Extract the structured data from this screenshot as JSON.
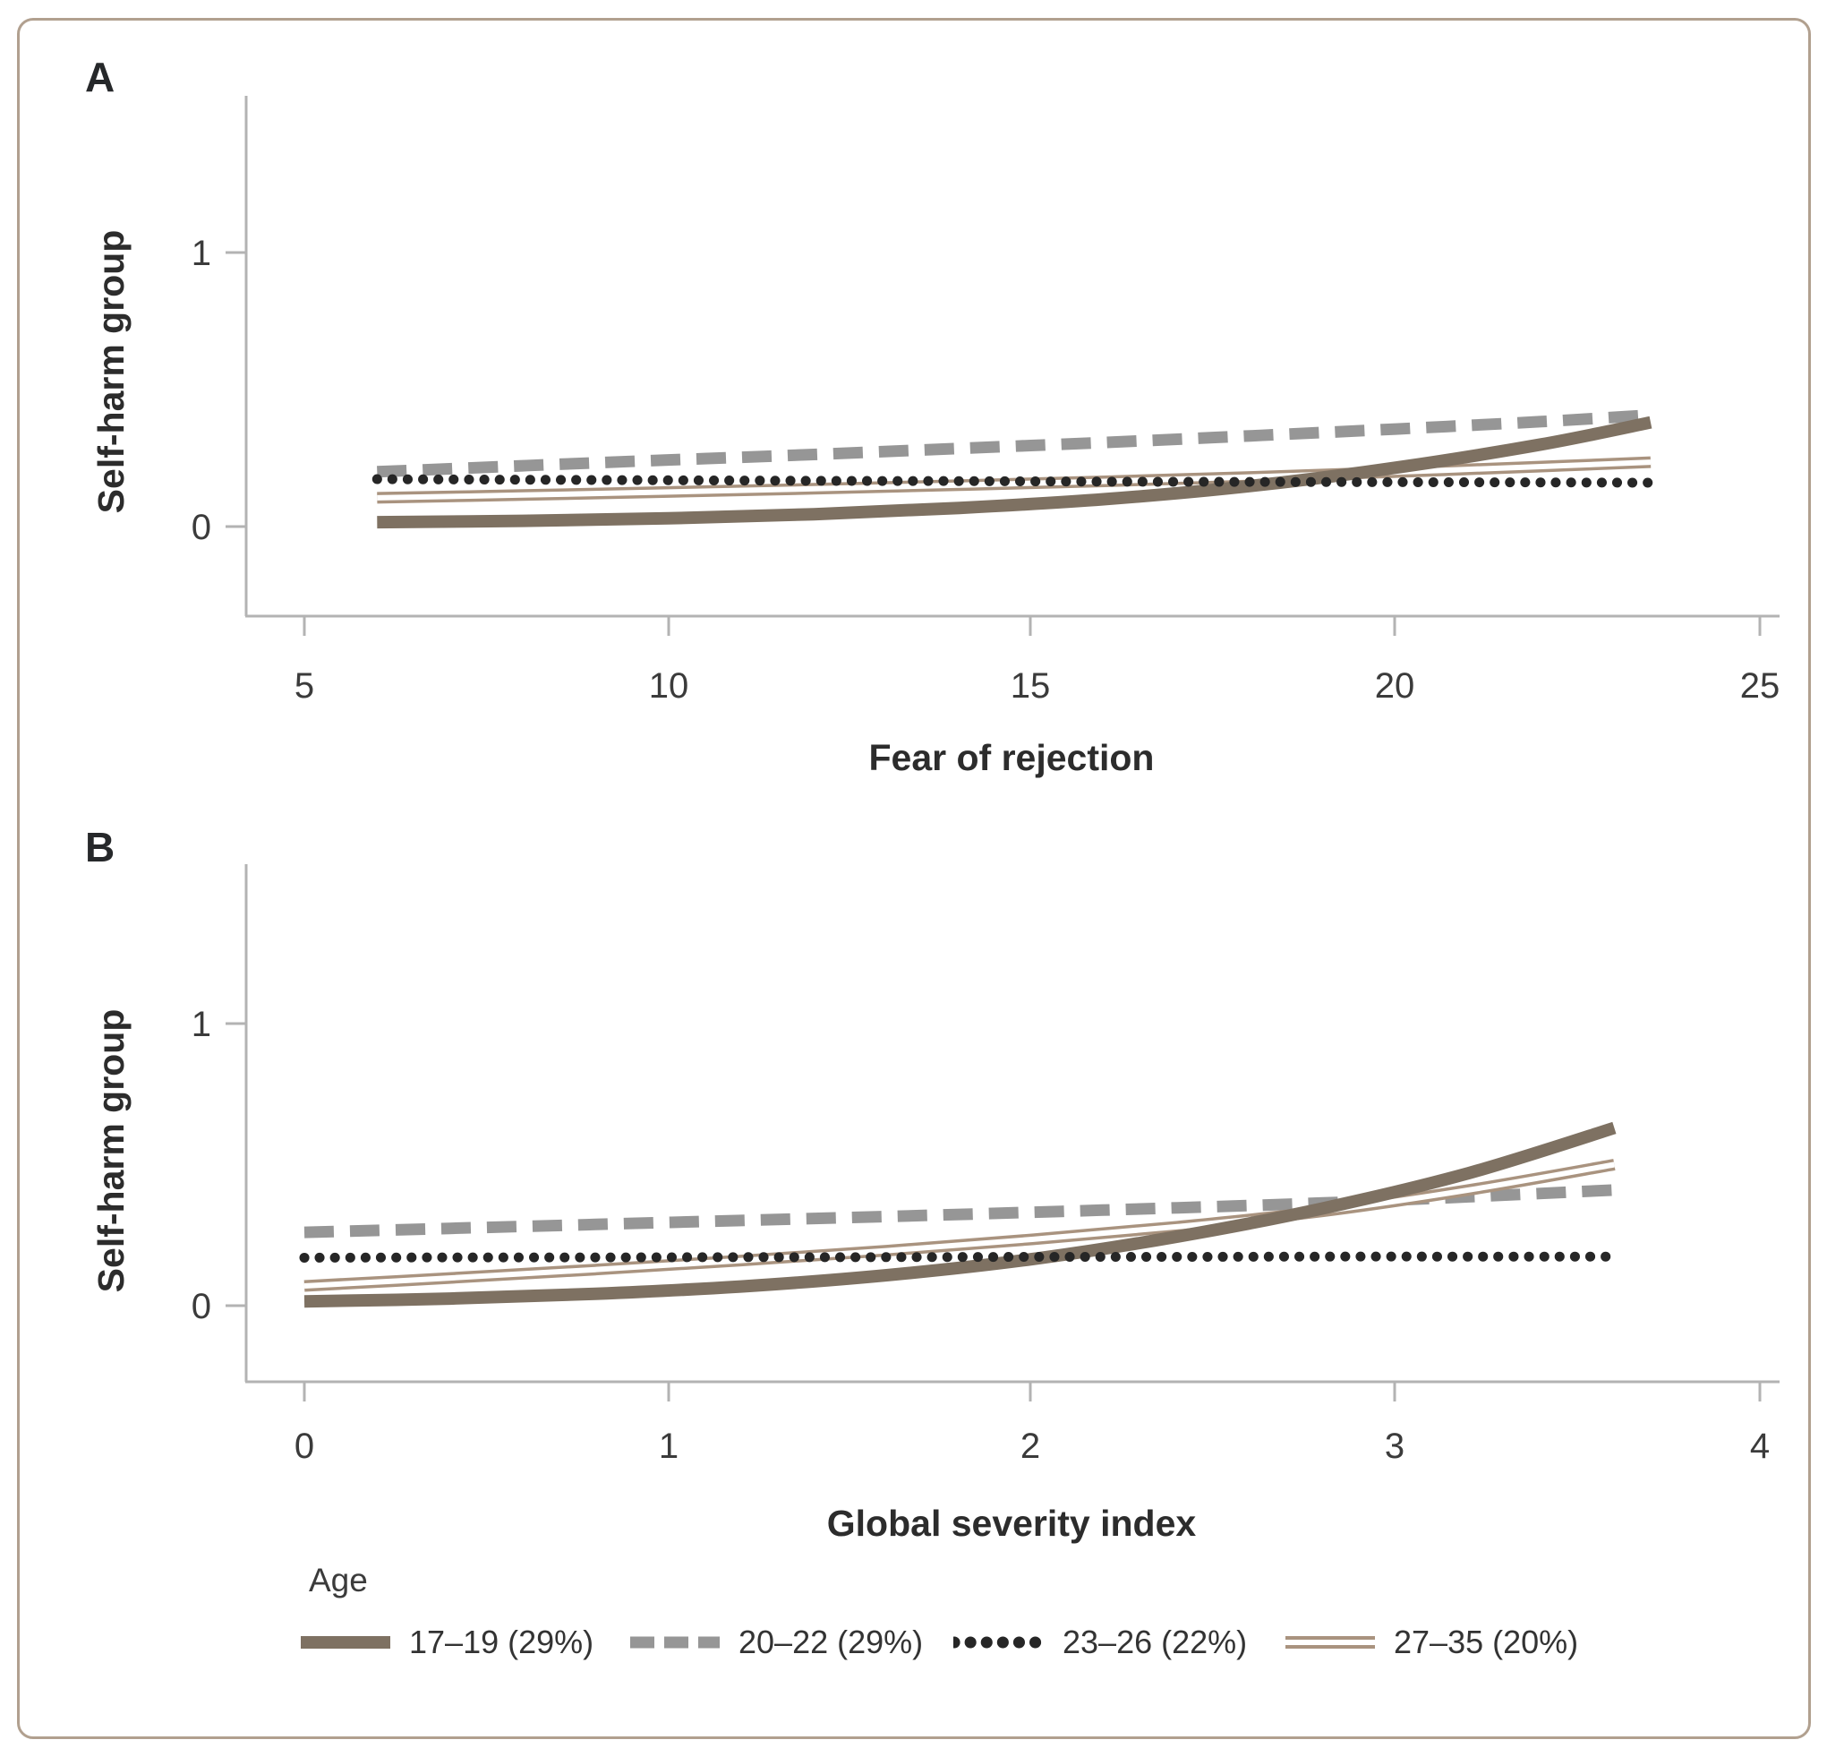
{
  "figure": {
    "panel_a": {
      "letter": "A",
      "y_label": "Self-harm group",
      "x_label": "Fear of rejection",
      "y_ticks": [
        "1",
        "0"
      ],
      "x_ticks": [
        "5",
        "10",
        "15",
        "20",
        "25"
      ]
    },
    "panel_b": {
      "letter": "B",
      "y_label": "Self-harm group",
      "x_label": "Global severity index",
      "y_ticks": [
        "1",
        "0"
      ],
      "x_ticks": [
        "0",
        "1",
        "2",
        "3",
        "4"
      ]
    },
    "legend": {
      "title": "Age",
      "items": [
        {
          "key": "17-19",
          "label": "17–19 (29%)",
          "style": "solid",
          "color": "#7e7162"
        },
        {
          "key": "20-22",
          "label": "20–22 (29%)",
          "style": "dashed",
          "color": "#969696"
        },
        {
          "key": "23-26",
          "label": "23–26 (22%)",
          "style": "dotted",
          "color": "#262626"
        },
        {
          "key": "27-35",
          "label": "27–35 (20%)",
          "style": "double",
          "color": "#a9937f"
        }
      ]
    },
    "colors": {
      "frame_border": "#b1a08f",
      "axis": "#b3b3b3",
      "text": "#3b3b3b"
    }
  },
  "chart_data": [
    {
      "type": "line",
      "title": "",
      "xlabel": "Fear of rejection",
      "ylabel": "Self-harm group",
      "xlim": [
        5,
        25
      ],
      "ylim": [
        0,
        1
      ],
      "grid": false,
      "legend_position": "bottom",
      "x": [
        6,
        8,
        10,
        12,
        14,
        16,
        18,
        20,
        22,
        23.5
      ],
      "series": [
        {
          "name": "17–19 (29%)",
          "key": "17-19",
          "style": "solid",
          "color": "#7e7162",
          "y": [
            0.016,
            0.021,
            0.03,
            0.045,
            0.068,
            0.1,
            0.148,
            0.215,
            0.3,
            0.38
          ]
        },
        {
          "name": "20–22 (29%)",
          "key": "20-22",
          "style": "dashed",
          "color": "#969696",
          "y": [
            0.2,
            0.222,
            0.243,
            0.263,
            0.285,
            0.307,
            0.331,
            0.356,
            0.383,
            0.407
          ]
        },
        {
          "name": "23–26 (22%)",
          "key": "23-26",
          "style": "dotted",
          "color": "#262626",
          "y": [
            0.173,
            0.171,
            0.169,
            0.167,
            0.166,
            0.164,
            0.163,
            0.162,
            0.161,
            0.16
          ]
        },
        {
          "name": "27–35 (20%)",
          "key": "27-35",
          "style": "double",
          "color": "#a9937f",
          "y": [
            0.105,
            0.115,
            0.126,
            0.138,
            0.151,
            0.165,
            0.181,
            0.199,
            0.219,
            0.235
          ]
        }
      ]
    },
    {
      "type": "line",
      "title": "",
      "xlabel": "Global severity index",
      "ylabel": "Self-harm group",
      "xlim": [
        0,
        4
      ],
      "ylim": [
        0,
        1
      ],
      "grid": false,
      "legend_position": "bottom",
      "x": [
        0,
        0.4,
        0.8,
        1.2,
        1.6,
        2.0,
        2.4,
        2.8,
        3.2,
        3.6
      ],
      "series": [
        {
          "name": "17–19 (29%)",
          "key": "17-19",
          "style": "solid",
          "color": "#7e7162",
          "y": [
            0.015,
            0.025,
            0.042,
            0.068,
            0.108,
            0.165,
            0.245,
            0.345,
            0.47,
            0.63
          ]
        },
        {
          "name": "20–22 (29%)",
          "key": "20-22",
          "style": "dashed",
          "color": "#969696",
          "y": [
            0.26,
            0.274,
            0.288,
            0.302,
            0.316,
            0.331,
            0.347,
            0.364,
            0.386,
            0.41
          ]
        },
        {
          "name": "23–26 (22%)",
          "key": "23-26",
          "style": "dotted",
          "color": "#262626",
          "y": [
            0.17,
            0.171,
            0.171,
            0.172,
            0.172,
            0.173,
            0.173,
            0.174,
            0.174,
            0.174
          ]
        },
        {
          "name": "27–35 (20%)",
          "key": "27-35",
          "style": "double",
          "color": "#a9937f",
          "y": [
            0.07,
            0.098,
            0.128,
            0.16,
            0.195,
            0.235,
            0.28,
            0.335,
            0.41,
            0.5
          ]
        }
      ]
    }
  ]
}
